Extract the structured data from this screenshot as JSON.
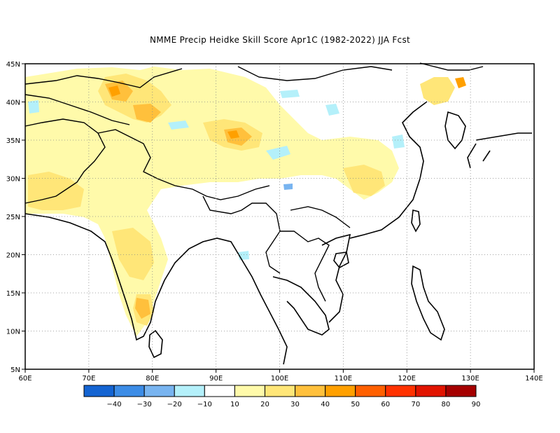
{
  "title": "NMME Precip Heidke Skill Score Apr1C (1982-2022) JJA Fcst",
  "map": {
    "lon_range": [
      60,
      140
    ],
    "lat_range": [
      5,
      45
    ],
    "lon_ticks": [
      "60E",
      "70E",
      "80E",
      "90E",
      "100E",
      "110E",
      "120E",
      "130E",
      "140E"
    ],
    "lat_ticks": [
      "5N",
      "10N",
      "15N",
      "20N",
      "25N",
      "30N",
      "35N",
      "40N",
      "45N"
    ],
    "gridlines": "dotted"
  },
  "colorbar": {
    "colors": [
      "#1464d2",
      "#3c8ce6",
      "#78b4f0",
      "#b4f0fa",
      "#ffffff",
      "#fffaaa",
      "#ffe678",
      "#ffc03c",
      "#ffa000",
      "#ff6000",
      "#ff3200",
      "#e11400",
      "#a50000"
    ],
    "labels": [
      "-40",
      "-30",
      "-20",
      "-10",
      "10",
      "20",
      "30",
      "40",
      "50",
      "60",
      "70",
      "80",
      "90"
    ]
  },
  "colors": {
    "coastline": "#000000",
    "grid": "#888888"
  }
}
